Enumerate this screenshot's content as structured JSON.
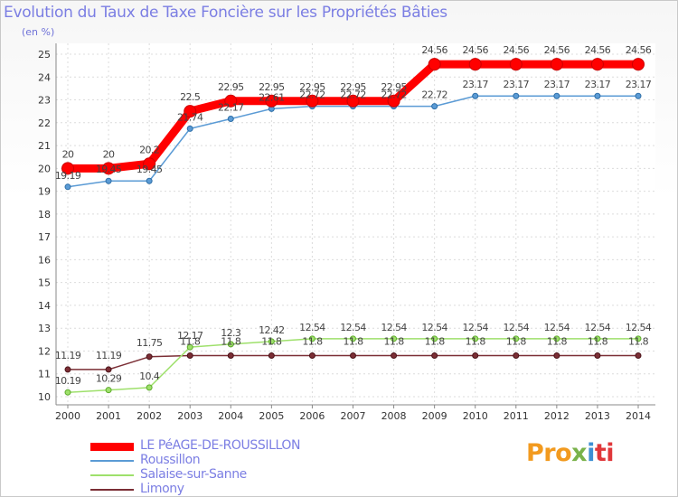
{
  "title": "Evolution du Taux de Taxe Foncière sur les Propriétés Bâties",
  "unit_label": "(en %)",
  "logo": {
    "part1": "Pro",
    "part2": "x",
    "part3": "i",
    "part4": "ti"
  },
  "chart_data": {
    "type": "line",
    "title": "Evolution du Taux de Taxe Foncière sur les Propriétés Bâties",
    "ylabel": "(en %)",
    "xlabel": "",
    "ylim": [
      10,
      25
    ],
    "yticks": [
      10,
      11,
      12,
      13,
      14,
      15,
      16,
      17,
      18,
      19,
      20,
      21,
      22,
      23,
      24,
      25
    ],
    "grid": true,
    "legend_position": "bottom-left",
    "categories": [
      "2000",
      "2001",
      "2002",
      "2003",
      "2004",
      "2005",
      "2006",
      "2007",
      "2008",
      "2009",
      "2010",
      "2011",
      "2012",
      "2013",
      "2014"
    ],
    "series": [
      {
        "name": "LE PéAGE-DE-ROUSSILLON",
        "color": "#ff0000",
        "values": [
          20,
          20,
          20.2,
          22.5,
          22.95,
          22.95,
          22.95,
          22.95,
          22.95,
          24.56,
          24.56,
          24.56,
          24.56,
          24.56,
          24.56
        ],
        "labels": [
          "20",
          "20",
          "20.2",
          "22.5",
          "22.95",
          "22.95",
          "22.95",
          "22.95",
          "22.95",
          "24.56",
          "24.56",
          "24.56",
          "24.56",
          "24.56",
          "24.56"
        ]
      },
      {
        "name": "Roussillon",
        "color": "#5b9bd5",
        "values": [
          19.19,
          19.45,
          19.45,
          21.74,
          22.17,
          22.61,
          22.72,
          22.72,
          22.72,
          22.72,
          23.17,
          23.17,
          23.17,
          23.17,
          23.17
        ],
        "labels": [
          "19.19",
          "19.45",
          "19.45",
          "21.74",
          "22.17",
          "22.61",
          "22.72",
          "22.72",
          "22.72",
          "22.72",
          "23.17",
          "23.17",
          "23.17",
          "23.17",
          "23.17"
        ]
      },
      {
        "name": "Salaise-sur-Sanne",
        "color": "#9ee06b",
        "values": [
          10.19,
          10.29,
          10.4,
          12.17,
          12.3,
          12.42,
          12.54,
          12.54,
          12.54,
          12.54,
          12.54,
          12.54,
          12.54,
          12.54,
          12.54
        ],
        "labels": [
          "10.19",
          "10.29",
          "10.4",
          "12.17",
          "12.3",
          "12.42",
          "12.54",
          "12.54",
          "12.54",
          "12.54",
          "12.54",
          "12.54",
          "12.54",
          "12.54",
          "12.54"
        ]
      },
      {
        "name": "Limony",
        "color": "#7b2e35",
        "values": [
          11.19,
          11.19,
          11.75,
          11.8,
          11.8,
          11.8,
          11.8,
          11.8,
          11.8,
          11.8,
          11.8,
          11.8,
          11.8,
          11.8,
          11.8
        ],
        "labels": [
          "11.19",
          "11.19",
          "11.75",
          "11.8",
          "11.8",
          "11.8",
          "11.8",
          "11.8",
          "11.8",
          "11.8",
          "11.8",
          "11.8",
          "11.8",
          "11.8",
          "11.8"
        ]
      }
    ]
  }
}
